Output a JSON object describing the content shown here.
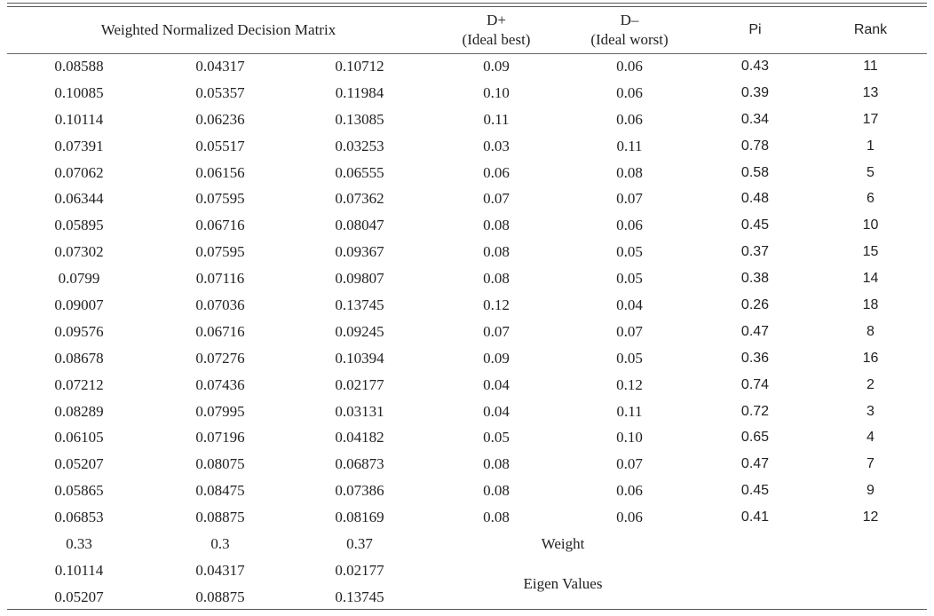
{
  "table": {
    "headers": {
      "matrix": "Weighted Normalized Decision Matrix",
      "d_plus": "D+",
      "d_plus_sub": "(Ideal best)",
      "d_minus": "D–",
      "d_minus_sub": "(Ideal worst)",
      "pi": "Pi",
      "rank": "Rank"
    },
    "rows": [
      [
        "0.08588",
        "0.04317",
        "0.10712",
        "0.09",
        "0.06",
        "0.43",
        "11"
      ],
      [
        "0.10085",
        "0.05357",
        "0.11984",
        "0.10",
        "0.06",
        "0.39",
        "13"
      ],
      [
        "0.10114",
        "0.06236",
        "0.13085",
        "0.11",
        "0.06",
        "0.34",
        "17"
      ],
      [
        "0.07391",
        "0.05517",
        "0.03253",
        "0.03",
        "0.11",
        "0.78",
        "1"
      ],
      [
        "0.07062",
        "0.06156",
        "0.06555",
        "0.06",
        "0.08",
        "0.58",
        "5"
      ],
      [
        "0.06344",
        "0.07595",
        "0.07362",
        "0.07",
        "0.07",
        "0.48",
        "6"
      ],
      [
        "0.05895",
        "0.06716",
        "0.08047",
        "0.08",
        "0.06",
        "0.45",
        "10"
      ],
      [
        "0.07302",
        "0.07595",
        "0.09367",
        "0.08",
        "0.05",
        "0.37",
        "15"
      ],
      [
        "0.0799",
        "0.07116",
        "0.09807",
        "0.08",
        "0.05",
        "0.38",
        "14"
      ],
      [
        "0.09007",
        "0.07036",
        "0.13745",
        "0.12",
        "0.04",
        "0.26",
        "18"
      ],
      [
        "0.09576",
        "0.06716",
        "0.09245",
        "0.07",
        "0.07",
        "0.47",
        "8"
      ],
      [
        "0.08678",
        "0.07276",
        "0.10394",
        "0.09",
        "0.05",
        "0.36",
        "16"
      ],
      [
        "0.07212",
        "0.07436",
        "0.02177",
        "0.04",
        "0.12",
        "0.74",
        "2"
      ],
      [
        "0.08289",
        "0.07995",
        "0.03131",
        "0.04",
        "0.11",
        "0.72",
        "3"
      ],
      [
        "0.06105",
        "0.07196",
        "0.04182",
        "0.05",
        "0.10",
        "0.65",
        "4"
      ],
      [
        "0.05207",
        "0.08075",
        "0.06873",
        "0.08",
        "0.07",
        "0.47",
        "7"
      ],
      [
        "0.05865",
        "0.08475",
        "0.07386",
        "0.08",
        "0.06",
        "0.45",
        "9"
      ],
      [
        "0.06853",
        "0.08875",
        "0.08169",
        "0.08",
        "0.06",
        "0.41",
        "12"
      ]
    ],
    "weight_row": {
      "values": [
        "0.33",
        "0.3",
        "0.37"
      ],
      "label": "Weight"
    },
    "eigen_rows": [
      [
        "0.10114",
        "0.04317",
        "0.02177"
      ],
      [
        "0.05207",
        "0.08875",
        "0.13745"
      ]
    ],
    "eigen_label": "Eigen Values"
  }
}
